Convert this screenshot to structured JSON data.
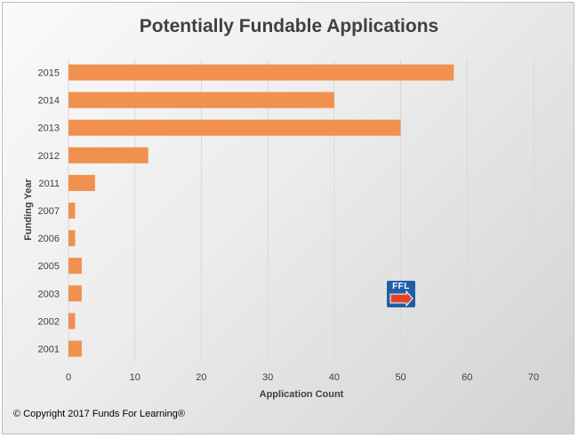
{
  "chart_data": {
    "type": "bar",
    "orientation": "horizontal",
    "title": "Potentially Fundable Applications",
    "xlabel": "Application Count",
    "ylabel": "Funding Year",
    "categories": [
      "2015",
      "2014",
      "2013",
      "2012",
      "2011",
      "2007",
      "2006",
      "2005",
      "2003",
      "2002",
      "2001"
    ],
    "values": [
      58,
      40,
      50,
      12,
      4,
      1,
      1,
      2,
      2,
      1,
      2
    ],
    "xlim": [
      0,
      70
    ],
    "xticks": [
      0,
      10,
      20,
      30,
      40,
      50,
      60,
      70
    ],
    "grid": "vertical",
    "bar_color": "#F0914F",
    "grid_color": "#d9d9d9"
  },
  "logo": {
    "text": "FFL"
  },
  "footer": {
    "copyright": "© Copyright 2017 Funds For Learning®"
  }
}
